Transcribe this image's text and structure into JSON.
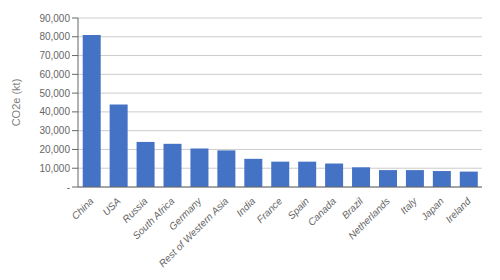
{
  "chart_data": {
    "type": "bar",
    "categories": [
      "China",
      "USA",
      "Russia",
      "South Africa",
      "Germany",
      "Rest of Western Asia",
      "India",
      "France",
      "Spain",
      "Canada",
      "Brazil",
      "Netherlands",
      "Italy",
      "Japan",
      "Ireland"
    ],
    "values": [
      81000,
      44000,
      24000,
      23000,
      20500,
      19500,
      15000,
      13500,
      13500,
      12500,
      10500,
      9000,
      9000,
      8500,
      8200
    ],
    "color": "#4472C4",
    "ylabel": "CO2e (kt)",
    "ylim": [
      0,
      90000
    ],
    "yticks": [
      {
        "value": 0,
        "label": "-"
      },
      {
        "value": 10000,
        "label": "10,000"
      },
      {
        "value": 20000,
        "label": "20,000"
      },
      {
        "value": 30000,
        "label": "30,000"
      },
      {
        "value": 40000,
        "label": "40,000"
      },
      {
        "value": 50000,
        "label": "50,000"
      },
      {
        "value": 60000,
        "label": "60,000"
      },
      {
        "value": 70000,
        "label": "70,000"
      },
      {
        "value": 80000,
        "label": "80,000"
      },
      {
        "value": 90000,
        "label": "90,000"
      }
    ],
    "grid": true
  }
}
